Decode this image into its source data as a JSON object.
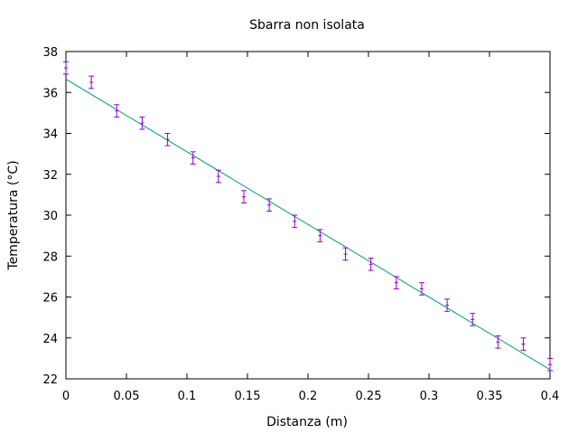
{
  "chart_data": {
    "type": "scatter",
    "title": "Sbarra non isolata",
    "xlabel": "Distanza (m)",
    "ylabel": "Temperatura (°C)",
    "xlim": [
      0,
      0.4
    ],
    "ylim": [
      22,
      38
    ],
    "xticks": [
      0,
      0.05,
      0.1,
      0.15,
      0.2,
      0.25,
      0.3,
      0.35,
      0.4
    ],
    "xtick_labels": [
      "0",
      "0.05",
      "0.1",
      "0.15",
      "0.2",
      "0.25",
      "0.3",
      "0.35",
      "0.4"
    ],
    "yticks": [
      22,
      24,
      26,
      28,
      30,
      32,
      34,
      36,
      38
    ],
    "ytick_labels": [
      "22",
      "24",
      "26",
      "28",
      "30",
      "32",
      "34",
      "36",
      "38"
    ],
    "grid": false,
    "series": [
      {
        "type": "errorbar",
        "color": "#9400d3",
        "x": [
          0,
          0.021,
          0.042,
          0.063,
          0.084,
          0.105,
          0.126,
          0.147,
          0.168,
          0.189,
          0.21,
          0.231,
          0.252,
          0.273,
          0.294,
          0.315,
          0.336,
          0.357,
          0.378,
          0.4
        ],
        "y": [
          37.2,
          36.5,
          35.1,
          34.5,
          33.7,
          32.8,
          31.9,
          30.9,
          30.5,
          29.7,
          29.0,
          28.1,
          27.6,
          26.7,
          26.4,
          25.6,
          24.9,
          23.8,
          23.7,
          22.7
        ],
        "yerr": 0.3
      },
      {
        "type": "line",
        "color": "#009e73",
        "x": [
          0,
          0.4
        ],
        "y": [
          36.65,
          22.45
        ]
      }
    ]
  }
}
